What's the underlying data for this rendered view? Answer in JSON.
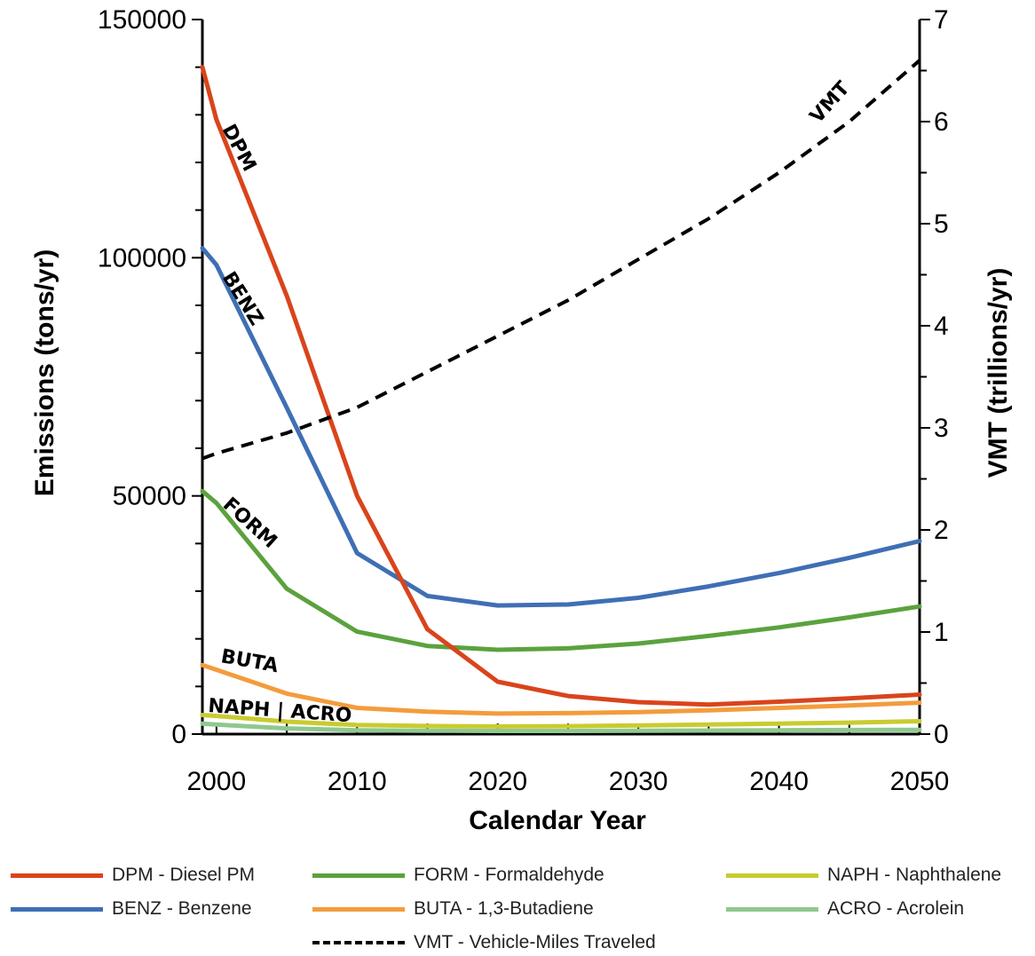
{
  "chart_data": {
    "type": "line",
    "xlabel": "Calendar Year",
    "ylabel": "Emissions (tons/yr)",
    "y2label": "VMT (trillions/yr)",
    "xlim": [
      1999,
      2050
    ],
    "ylim": [
      0,
      150000
    ],
    "y2lim": [
      0,
      7
    ],
    "x_ticks": [
      "2000",
      "2010",
      "2020",
      "2030",
      "2040",
      "2050"
    ],
    "y_ticks": [
      "0",
      "50000",
      "100000",
      "150000"
    ],
    "y2_ticks": [
      "0",
      "1",
      "2",
      "3",
      "4",
      "5",
      "6",
      "7"
    ],
    "grid": false,
    "legend_position": "bottom",
    "series": [
      {
        "name": "DPM - Diesel PM",
        "key": "dpm",
        "axis": "left",
        "color": "#d9441c",
        "x": [
          1999,
          2000,
          2005,
          2010,
          2015,
          2020,
          2025,
          2030,
          2035,
          2040,
          2045,
          2050
        ],
        "y": [
          140000,
          129000,
          92000,
          50000,
          22000,
          11000,
          8000,
          6700,
          6200,
          6800,
          7500,
          8300
        ]
      },
      {
        "name": "BENZ - Benzene",
        "key": "benz",
        "axis": "left",
        "color": "#3f6fb4",
        "x": [
          1999,
          2000,
          2005,
          2010,
          2015,
          2020,
          2025,
          2030,
          2035,
          2040,
          2045,
          2050
        ],
        "y": [
          102000,
          98500,
          68500,
          38000,
          29000,
          27000,
          27200,
          28600,
          31000,
          33800,
          37000,
          40500
        ]
      },
      {
        "name": "FORM - Formaldehyde",
        "key": "form",
        "axis": "left",
        "color": "#5ba23e",
        "x": [
          1999,
          2000,
          2005,
          2010,
          2015,
          2020,
          2025,
          2030,
          2035,
          2040,
          2045,
          2050
        ],
        "y": [
          51000,
          48500,
          30500,
          21500,
          18500,
          17700,
          18000,
          19000,
          20600,
          22400,
          24500,
          26800
        ]
      },
      {
        "name": "BUTA - 1,3-Butadiene",
        "key": "buta",
        "axis": "left",
        "color": "#f39c3c",
        "x": [
          1999,
          2000,
          2005,
          2010,
          2015,
          2020,
          2025,
          2030,
          2035,
          2040,
          2045,
          2050
        ],
        "y": [
          14500,
          13500,
          8500,
          5500,
          4700,
          4300,
          4400,
          4600,
          5000,
          5500,
          6000,
          6600
        ]
      },
      {
        "name": "NAPH - Naphthalene",
        "key": "naph",
        "axis": "left",
        "color": "#c8cc30",
        "x": [
          1999,
          2000,
          2005,
          2010,
          2015,
          2020,
          2025,
          2030,
          2035,
          2040,
          2045,
          2050
        ],
        "y": [
          4000,
          3800,
          2600,
          1900,
          1700,
          1600,
          1650,
          1800,
          2000,
          2200,
          2400,
          2700
        ]
      },
      {
        "name": "ACRO - Acrolein",
        "key": "acro",
        "axis": "left",
        "color": "#8fc88f",
        "x": [
          1999,
          2000,
          2005,
          2010,
          2015,
          2020,
          2025,
          2030,
          2035,
          2040,
          2045,
          2050
        ],
        "y": [
          2200,
          2000,
          1200,
          800,
          700,
          650,
          650,
          700,
          750,
          800,
          850,
          900
        ]
      },
      {
        "name": "VMT - Vehicle-Miles Traveled",
        "key": "vmt",
        "axis": "right",
        "color": "#000000",
        "dashed": true,
        "x": [
          1999,
          2000,
          2005,
          2010,
          2015,
          2020,
          2025,
          2030,
          2035,
          2040,
          2045,
          2050
        ],
        "y": [
          2.7,
          2.75,
          2.95,
          3.2,
          3.55,
          3.9,
          4.25,
          4.65,
          5.05,
          5.5,
          6.0,
          6.6
        ]
      }
    ],
    "curve_labels": [
      {
        "text": "DPM",
        "series": "dpm"
      },
      {
        "text": "BENZ",
        "series": "benz"
      },
      {
        "text": "FORM",
        "series": "form"
      },
      {
        "text": "BUTA",
        "series": "buta"
      },
      {
        "text": "NAPH | ACRO",
        "series": "naph"
      },
      {
        "text": "VMT",
        "series": "vmt"
      }
    ]
  },
  "legend": [
    {
      "label": "DPM - Diesel PM",
      "color": "#d9441c"
    },
    {
      "label": "FORM - Formaldehyde",
      "color": "#5ba23e"
    },
    {
      "label": "NAPH - Naphthalene",
      "color": "#c8cc30"
    },
    {
      "label": "BENZ - Benzene",
      "color": "#3f6fb4"
    },
    {
      "label": "BUTA - 1,3-Butadiene",
      "color": "#f39c3c"
    },
    {
      "label": "ACRO - Acrolein",
      "color": "#8fc88f"
    },
    {
      "label": "VMT - Vehicle-Miles Traveled",
      "color": "#000000",
      "dashed": true
    }
  ]
}
